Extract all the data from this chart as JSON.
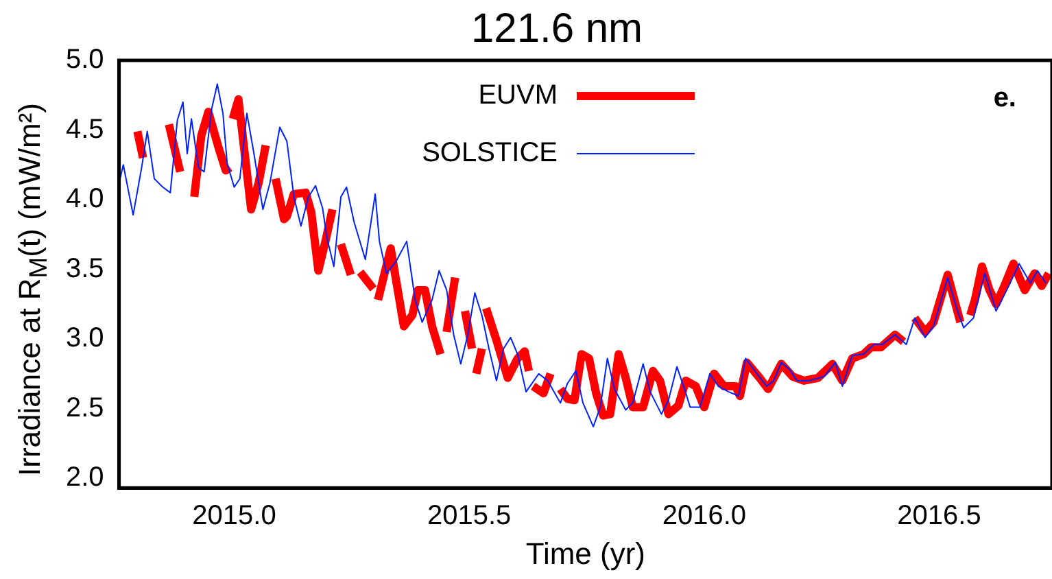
{
  "chart_data": {
    "type": "line",
    "title": "121.6 nm",
    "xlabel": "Time (yr)",
    "ylabel": "Irradiance at R$_{M}$(t) (mW/m²)",
    "annotations": [
      "e."
    ],
    "xlim": [
      2014.755,
      2016.74
    ],
    "ylim": [
      1.93,
      5.0
    ],
    "xticks": [
      {
        "value": 2015,
        "label": "2015.0"
      },
      {
        "value": 2015.5,
        "label": "2015.5"
      },
      {
        "value": 2016,
        "label": "2016.0"
      },
      {
        "value": 2016.5,
        "label": "2016.5"
      }
    ],
    "yticks": [
      {
        "value": 2,
        "label": "2.0"
      },
      {
        "value": 2.5,
        "label": "2.5"
      },
      {
        "value": 3,
        "label": "3.0"
      },
      {
        "value": 3.5,
        "label": "3.5"
      },
      {
        "value": 4,
        "label": "4.0"
      },
      {
        "value": 4.5,
        "label": "4.5"
      },
      {
        "value": 5,
        "label": "5.0"
      }
    ],
    "grid": false,
    "legend": "top",
    "marker": "none",
    "line_style": "solid",
    "series": [
      {
        "name": "EUVM",
        "color": "#ff0000",
        "x": [
          2014.794,
          2014.806,
          2014.83,
          2014.861,
          2014.885,
          2014.9,
          2014.915,
          2014.93,
          2014.945,
          2014.967,
          2014.982,
          2014.991,
          2014.994,
          2014.997,
          2015.009,
          2015.021,
          2015.036,
          2015.052,
          2015.067,
          2015.078,
          2015.088,
          2015.106,
          2015.112,
          2015.127,
          2015.152,
          2015.164,
          2015.179,
          2015.194,
          2015.209,
          2015.218,
          2015.227,
          2015.248,
          2015.258,
          2015.268,
          2015.296,
          2015.3,
          2015.306,
          2015.333,
          2015.361,
          2015.379,
          2015.391,
          2015.406,
          2015.421,
          2015.439,
          2015.445,
          2015.452,
          2015.47,
          2015.48,
          2015.491,
          2015.506,
          2015.51,
          2015.515,
          2015.527,
          2015.531,
          2015.536,
          2015.558,
          2015.582,
          2015.603,
          2015.618,
          2015.627,
          2015.631,
          2015.636,
          2015.658,
          2015.673,
          2015.685,
          2015.694,
          2015.709,
          2015.724,
          2015.739,
          2015.755,
          2015.77,
          2015.785,
          2015.8,
          2015.818,
          2015.833,
          2015.848,
          2015.87,
          2015.891,
          2015.906,
          2015.924,
          2015.945,
          2015.961,
          2015.982,
          2016.0,
          2016.021,
          2016.042,
          2016.067,
          2016.076,
          2016.091,
          2016.118,
          2016.136,
          2016.164,
          2016.188,
          2016.212,
          2016.242,
          2016.273,
          2016.294,
          2016.315,
          2016.339,
          2016.355,
          2016.376,
          2016.406,
          2016.424,
          2016.436,
          2016.448,
          2016.47,
          2016.488,
          2016.518,
          2016.545,
          2016.553,
          2016.558,
          2016.561,
          2016.566,
          2016.576,
          2016.591,
          2016.606,
          2016.621,
          2016.636,
          2016.658,
          2016.682,
          2016.703,
          2016.718,
          2016.733
        ],
        "values": [
          4.49,
          4.3,
          null,
          4.54,
          4.2,
          null,
          4.02,
          4.46,
          4.63,
          4.37,
          4.21,
          4.23,
          null,
          4.58,
          4.72,
          4.37,
          3.93,
          4.12,
          4.39,
          null,
          4.15,
          3.86,
          3.88,
          4.04,
          4.05,
          3.91,
          3.49,
          3.7,
          3.93,
          null,
          3.68,
          3.46,
          null,
          3.48,
          3.36,
          null,
          3.28,
          3.65,
          3.09,
          3.17,
          3.35,
          3.35,
          3.09,
          2.89,
          null,
          3.05,
          3.44,
          null,
          3.2,
          2.93,
          null,
          2.75,
          2.93,
          null,
          3.22,
          2.99,
          2.72,
          2.86,
          2.91,
          2.77,
          null,
          2.66,
          2.61,
          2.75,
          null,
          2.64,
          2.57,
          2.56,
          2.89,
          2.86,
          2.61,
          2.45,
          2.46,
          2.89,
          2.72,
          2.51,
          2.51,
          2.77,
          2.7,
          2.46,
          2.52,
          2.7,
          2.66,
          2.51,
          2.75,
          2.66,
          2.66,
          2.59,
          2.83,
          2.72,
          2.64,
          2.82,
          2.73,
          2.7,
          2.72,
          2.82,
          2.7,
          2.86,
          2.89,
          2.94,
          2.94,
          3.03,
          2.98,
          null,
          3.15,
          3.05,
          3.12,
          3.46,
          3.12,
          null,
          3.17,
          null,
          3.17,
          3.28,
          3.52,
          3.36,
          3.25,
          3.36,
          3.54,
          3.35,
          3.47,
          3.38,
          3.47
        ]
      },
      {
        "name": "SOLSTICE",
        "color": "#0022ff",
        "x": [
          2014.755,
          2014.764,
          2014.785,
          2014.803,
          2014.815,
          2014.83,
          2014.839,
          2014.848,
          2014.864,
          2014.879,
          2014.891,
          2014.9,
          2014.909,
          2014.924,
          2014.936,
          2014.952,
          2014.964,
          2014.976,
          2014.985,
          2015.0,
          2015.012,
          2015.027,
          2015.042,
          2015.061,
          2015.076,
          2015.097,
          2015.112,
          2015.127,
          2015.142,
          2015.158,
          2015.173,
          2015.188,
          2015.197,
          2015.212,
          2015.227,
          2015.239,
          2015.255,
          2015.279,
          2015.3,
          2015.309,
          2015.324,
          2015.345,
          2015.367,
          2015.385,
          2015.4,
          2015.421,
          2015.436,
          2015.452,
          2015.467,
          2015.482,
          2015.497,
          2015.512,
          2015.527,
          2015.542,
          2015.558,
          2015.573,
          2015.588,
          2015.603,
          2015.621,
          2015.648,
          2015.667,
          2015.694,
          2015.709,
          2015.727,
          2015.742,
          2015.764,
          2015.779,
          2015.794,
          2015.809,
          2015.833,
          2015.848,
          2015.87,
          2015.885,
          2015.909,
          2015.924,
          2015.942,
          2015.961,
          2015.97,
          2015.991,
          2016.012,
          2016.03,
          2016.052,
          2016.073,
          2016.088,
          2016.112,
          2016.133,
          2016.148,
          2016.164,
          2016.182,
          2016.197,
          2016.224,
          2016.255,
          2016.279,
          2016.294,
          2016.315,
          2016.339,
          2016.361,
          2016.379,
          2016.406,
          2016.43,
          2016.448,
          2016.47,
          2016.488,
          2016.518,
          2016.539,
          2016.552,
          2016.573,
          2016.597,
          2016.621,
          2016.648,
          2016.67,
          2016.694,
          2016.709,
          2016.727
        ],
        "values": [
          4.12,
          4.25,
          3.89,
          4.23,
          4.49,
          4.15,
          4.12,
          4.09,
          4.05,
          4.57,
          4.7,
          4.33,
          4.58,
          4.23,
          4.2,
          4.65,
          4.83,
          4.62,
          4.26,
          4.09,
          4.15,
          4.62,
          4.33,
          3.93,
          4.12,
          4.52,
          4.42,
          4.02,
          3.81,
          4.02,
          4.1,
          3.94,
          3.73,
          3.52,
          4.02,
          4.09,
          3.84,
          3.57,
          4.04,
          3.7,
          3.47,
          3.56,
          3.7,
          3.28,
          3.12,
          3.28,
          3.49,
          3.35,
          3.03,
          2.82,
          3.03,
          3.33,
          3.17,
          2.93,
          2.7,
          2.93,
          3.01,
          2.89,
          2.62,
          2.75,
          2.7,
          2.54,
          2.68,
          2.77,
          2.54,
          2.37,
          2.51,
          2.86,
          2.64,
          2.49,
          2.54,
          2.82,
          2.62,
          2.46,
          2.56,
          2.8,
          2.61,
          2.51,
          2.51,
          2.75,
          2.66,
          2.62,
          2.59,
          2.86,
          2.75,
          2.66,
          2.7,
          2.83,
          2.78,
          2.7,
          2.7,
          2.73,
          2.83,
          2.66,
          2.88,
          2.89,
          2.96,
          2.96,
          3.03,
          2.96,
          3.15,
          3.01,
          3.09,
          3.44,
          3.2,
          3.08,
          3.15,
          3.47,
          3.2,
          3.38,
          3.54,
          3.4,
          3.49,
          3.4
        ]
      }
    ]
  }
}
